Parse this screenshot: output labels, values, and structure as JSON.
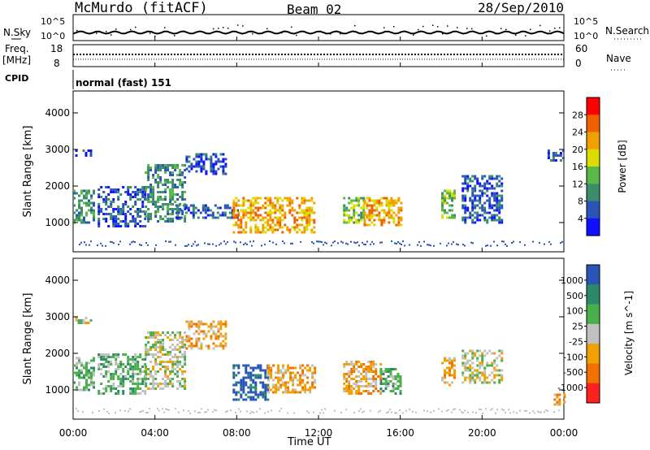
{
  "header": {
    "station": "McMurdo (fitACF)",
    "beam": "Beam 02",
    "date": "28/Sep/2010"
  },
  "top_panel": {
    "left_label": "N.Sky",
    "right_label": "N.Search",
    "left_ticks": [
      "10^5",
      "10^0"
    ],
    "right_ticks": [
      "10^5",
      "10^0"
    ],
    "freq_label_1": "Freq.",
    "freq_label_2": "[MHz]",
    "freq_ticks": [
      "18",
      "8"
    ],
    "nave_label": "Nave",
    "nave_ticks": [
      "60",
      "0"
    ],
    "cpid_label": "CPID",
    "cpid_value": "normal (fast) 151"
  },
  "x_axis": {
    "label": "Time UT",
    "ticks": [
      "00:00",
      "04:00",
      "08:00",
      "12:00",
      "16:00",
      "20:00",
      "00:00"
    ]
  },
  "colors": {
    "power": [
      "#1010ff",
      "#2a55b8",
      "#3a8f6a",
      "#5ab84a",
      "#dcdc00",
      "#f0a000",
      "#f06000",
      "#ff0000"
    ],
    "velocity": [
      "#2a55b8",
      "#2a8a6a",
      "#4ab04a",
      "#c0c0c0",
      "#f0a000",
      "#f07000",
      "#ff2020"
    ]
  },
  "chart_data": [
    {
      "type": "heatmap",
      "title": "Power",
      "ylabel": "Slant Range [km]",
      "xlabel": "",
      "y_ticks": [
        "1000",
        "2000",
        "3000",
        "4000"
      ],
      "ylim": [
        200,
        4600
      ],
      "xlim_hours": [
        0,
        24
      ],
      "colorbar": {
        "label": "Power [dB]",
        "ticks": [
          "4",
          "8",
          "12",
          "16",
          "20",
          "24",
          "28"
        ],
        "range": [
          0,
          32
        ]
      },
      "regions": [
        {
          "t": [
            0.0,
            1.0
          ],
          "r": [
            1000,
            1900
          ],
          "v": 10
        },
        {
          "t": [
            0.1,
            0.9
          ],
          "r": [
            2800,
            3000
          ],
          "v": 6
        },
        {
          "t": [
            1.2,
            3.5
          ],
          "r": [
            900,
            2000
          ],
          "v": 6
        },
        {
          "t": [
            3.5,
            5.5
          ],
          "r": [
            1000,
            2600
          ],
          "v": 8
        },
        {
          "t": [
            5.5,
            7.5
          ],
          "r": [
            2300,
            2900
          ],
          "v": 7
        },
        {
          "t": [
            5.0,
            8.0
          ],
          "r": [
            1100,
            1500
          ],
          "v": 7
        },
        {
          "t": [
            7.8,
            11.8
          ],
          "r": [
            700,
            1700
          ],
          "v": 20
        },
        {
          "t": [
            13.2,
            14.2
          ],
          "r": [
            1000,
            1700
          ],
          "v": 12
        },
        {
          "t": [
            14.2,
            16.0
          ],
          "r": [
            900,
            1700
          ],
          "v": 20
        },
        {
          "t": [
            18.0,
            18.7
          ],
          "r": [
            1100,
            1900
          ],
          "v": 14
        },
        {
          "t": [
            19.0,
            21.0
          ],
          "r": [
            1000,
            2300
          ],
          "v": 6
        },
        {
          "t": [
            23.2,
            24.0
          ],
          "r": [
            2700,
            3000
          ],
          "v": 6
        }
      ]
    },
    {
      "type": "heatmap",
      "title": "Velocity",
      "ylabel": "Slant Range [km]",
      "xlabel": "Time UT",
      "y_ticks": [
        "1000",
        "2000",
        "3000",
        "4000"
      ],
      "ylim": [
        200,
        4600
      ],
      "xlim_hours": [
        0,
        24
      ],
      "colorbar": {
        "label": "Velocity [m s^-1]",
        "ticks": [
          "1000",
          "500",
          "100",
          "25",
          "-25",
          "-100",
          "-500",
          "-1000"
        ],
        "range": [
          -1000,
          1000
        ]
      },
      "regions": [
        {
          "t": [
            0.0,
            1.0
          ],
          "r": [
            1000,
            1900
          ],
          "v": 150
        },
        {
          "t": [
            0.1,
            0.9
          ],
          "r": [
            2800,
            3000
          ],
          "v": 0
        },
        {
          "t": [
            1.2,
            3.5
          ],
          "r": [
            900,
            2000
          ],
          "v": 150
        },
        {
          "t": [
            3.5,
            5.5
          ],
          "r": [
            1000,
            2600
          ],
          "v": 100
        },
        {
          "t": [
            5.5,
            7.5
          ],
          "r": [
            2100,
            2900
          ],
          "v": -200
        },
        {
          "t": [
            7.8,
            9.5
          ],
          "r": [
            700,
            1700
          ],
          "v": 800
        },
        {
          "t": [
            9.5,
            11.8
          ],
          "r": [
            900,
            1700
          ],
          "v": -300
        },
        {
          "t": [
            13.2,
            15.0
          ],
          "r": [
            900,
            1800
          ],
          "v": -400
        },
        {
          "t": [
            15.0,
            16.0
          ],
          "r": [
            900,
            1600
          ],
          "v": 200
        },
        {
          "t": [
            18.0,
            18.7
          ],
          "r": [
            1100,
            1900
          ],
          "v": -150
        },
        {
          "t": [
            19.0,
            21.0
          ],
          "r": [
            1200,
            2100
          ],
          "v": -100
        },
        {
          "t": [
            23.5,
            24.0
          ],
          "r": [
            600,
            900
          ],
          "v": -400
        }
      ]
    }
  ]
}
